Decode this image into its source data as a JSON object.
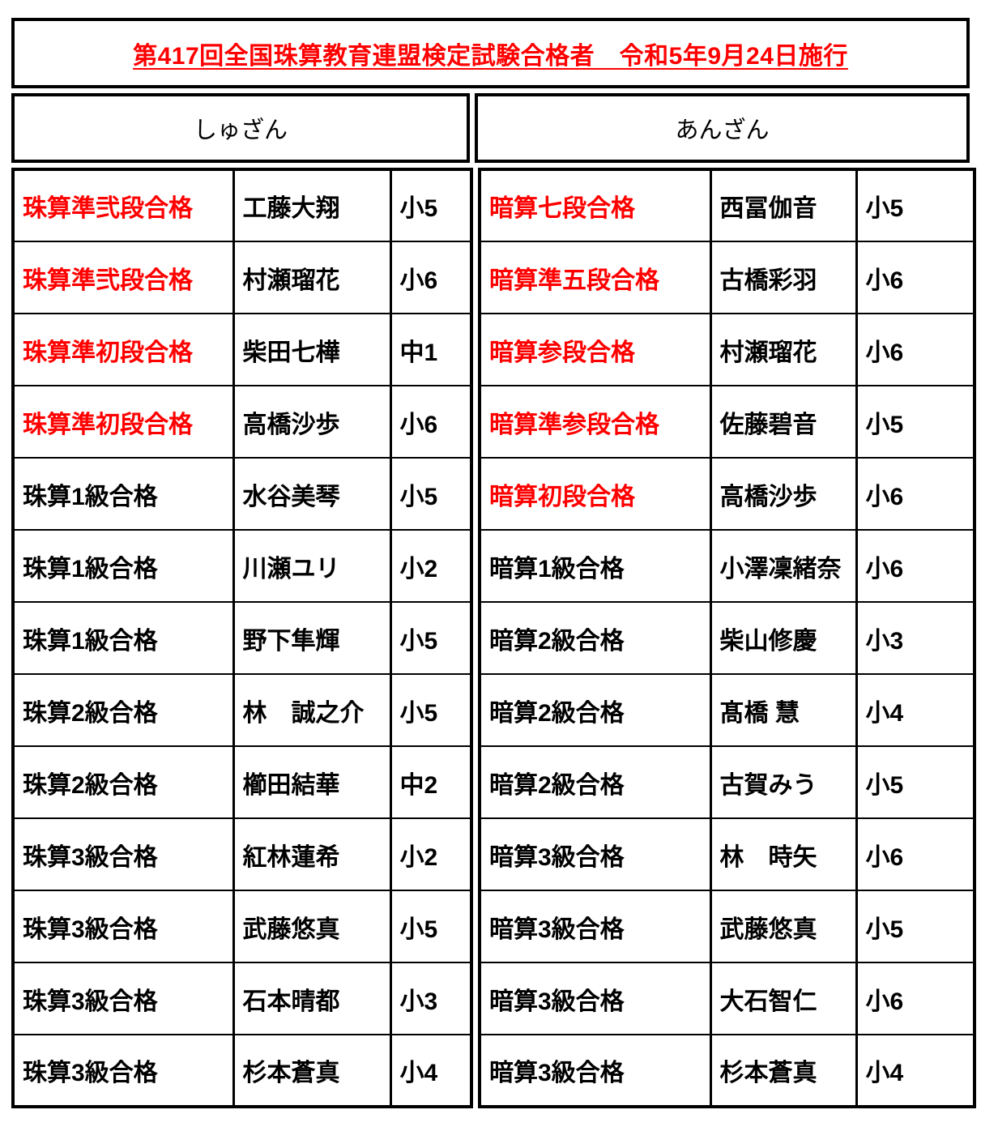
{
  "title": "第417回全国珠算教育連盟検定試験合格者　令和5年9月24日施行",
  "colors": {
    "accent_red": "#FF0000",
    "border_black": "#000000",
    "background": "#FFFFFF"
  },
  "sections": [
    {
      "header": "しゅざん",
      "rows": [
        {
          "rank": "珠算準弐段合格",
          "name": "工藤大翔",
          "grade": "小5",
          "red": true
        },
        {
          "rank": "珠算準弐段合格",
          "name": "村瀬瑠花",
          "grade": "小6",
          "red": true
        },
        {
          "rank": "珠算準初段合格",
          "name": "柴田七樺",
          "grade": "中1",
          "red": true
        },
        {
          "rank": "珠算準初段合格",
          "name": "高橋沙歩",
          "grade": "小6",
          "red": true
        },
        {
          "rank": "珠算1級合格",
          "name": "水谷美琴",
          "grade": "小5",
          "red": false
        },
        {
          "rank": "珠算1級合格",
          "name": "川瀬ユリ",
          "grade": "小2",
          "red": false
        },
        {
          "rank": "珠算1級合格",
          "name": "野下隼輝",
          "grade": "小5",
          "red": false
        },
        {
          "rank": "珠算2級合格",
          "name": "林　誠之介",
          "grade": "小5",
          "red": false
        },
        {
          "rank": "珠算2級合格",
          "name": "櫛田結華",
          "grade": "中2",
          "red": false
        },
        {
          "rank": "珠算3級合格",
          "name": "紅林蓮希",
          "grade": "小2",
          "red": false
        },
        {
          "rank": "珠算3級合格",
          "name": "武藤悠真",
          "grade": "小5",
          "red": false
        },
        {
          "rank": "珠算3級合格",
          "name": "石本晴都",
          "grade": "小3",
          "red": false
        },
        {
          "rank": "珠算3級合格",
          "name": "杉本蒼真",
          "grade": "小4",
          "red": false
        }
      ]
    },
    {
      "header": "あんざん",
      "rows": [
        {
          "rank": "暗算七段合格",
          "name": "西冨伽音",
          "grade": "小5",
          "red": true
        },
        {
          "rank": "暗算準五段合格",
          "name": "古橋彩羽",
          "grade": "小6",
          "red": true
        },
        {
          "rank": "暗算参段合格",
          "name": "村瀬瑠花",
          "grade": "小6",
          "red": true
        },
        {
          "rank": "暗算準参段合格",
          "name": "佐藤碧音",
          "grade": "小5",
          "red": true
        },
        {
          "rank": "暗算初段合格",
          "name": "高橋沙歩",
          "grade": "小6",
          "red": true
        },
        {
          "rank": "暗算1級合格",
          "name": "小澤凜緒奈",
          "grade": "小6",
          "red": false
        },
        {
          "rank": "暗算2級合格",
          "name": "柴山修慶",
          "grade": "小3",
          "red": false
        },
        {
          "rank": "暗算2級合格",
          "name": "髙橋 慧",
          "grade": "小4",
          "red": false
        },
        {
          "rank": "暗算2級合格",
          "name": "古賀みう",
          "grade": "小5",
          "red": false
        },
        {
          "rank": "暗算3級合格",
          "name": "林　時矢",
          "grade": "小6",
          "red": false
        },
        {
          "rank": "暗算3級合格",
          "name": "武藤悠真",
          "grade": "小5",
          "red": false
        },
        {
          "rank": "暗算3級合格",
          "name": "大石智仁",
          "grade": "小6",
          "red": false
        },
        {
          "rank": "暗算3級合格",
          "name": "杉本蒼真",
          "grade": "小4",
          "red": false
        }
      ]
    }
  ]
}
